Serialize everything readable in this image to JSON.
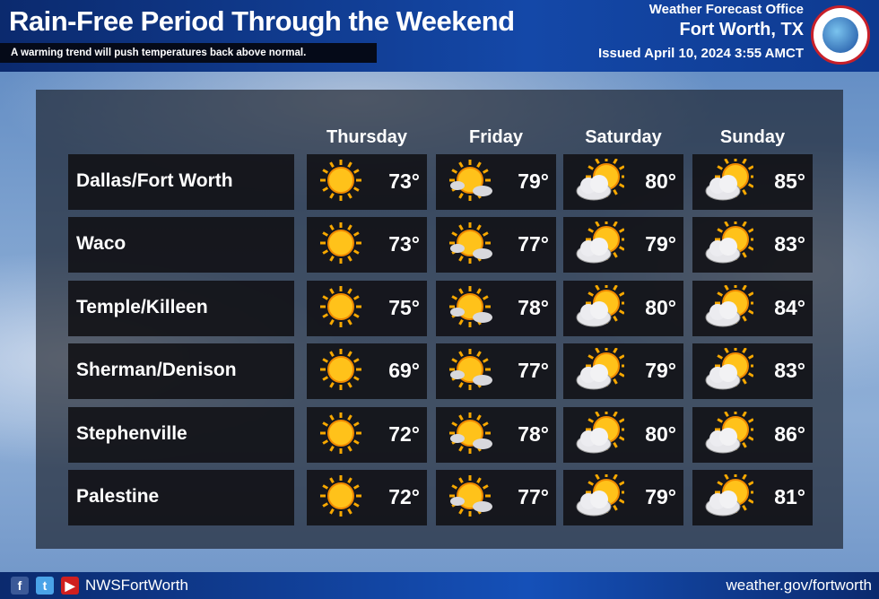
{
  "header": {
    "title": "Rain-Free Period Through the Weekend",
    "subtitle": "A warming trend will push temperatures back above normal.",
    "office_line1": "Weather Forecast Office",
    "office_line2": "Fort Worth, TX",
    "issued": "Issued April 10, 2024 3:55 AMCT",
    "logo_text": "National Weather Service"
  },
  "days": [
    "Thursday",
    "Friday",
    "Saturday",
    "Sunday"
  ],
  "day_icons": [
    "sunny-icon",
    "mostly-sunny-icon",
    "partly-cloudy-icon",
    "partly-cloudy-icon"
  ],
  "rows": [
    {
      "city": "Dallas/Fort Worth",
      "temps": [
        "73°",
        "79°",
        "80°",
        "85°"
      ]
    },
    {
      "city": "Waco",
      "temps": [
        "73°",
        "77°",
        "79°",
        "83°"
      ]
    },
    {
      "city": "Temple/Killeen",
      "temps": [
        "75°",
        "78°",
        "80°",
        "84°"
      ]
    },
    {
      "city": "Sherman/Denison",
      "temps": [
        "69°",
        "77°",
        "79°",
        "83°"
      ]
    },
    {
      "city": "Stephenville",
      "temps": [
        "72°",
        "78°",
        "80°",
        "86°"
      ]
    },
    {
      "city": "Palestine",
      "temps": [
        "72°",
        "77°",
        "79°",
        "81°"
      ]
    }
  ],
  "footer": {
    "handle": "NWSFortWorth",
    "url": "weather.gov/fortworth"
  },
  "colors": {
    "header": "#0b2a6e",
    "sun": "#f7b500",
    "cloud": "#e8e8ea"
  }
}
